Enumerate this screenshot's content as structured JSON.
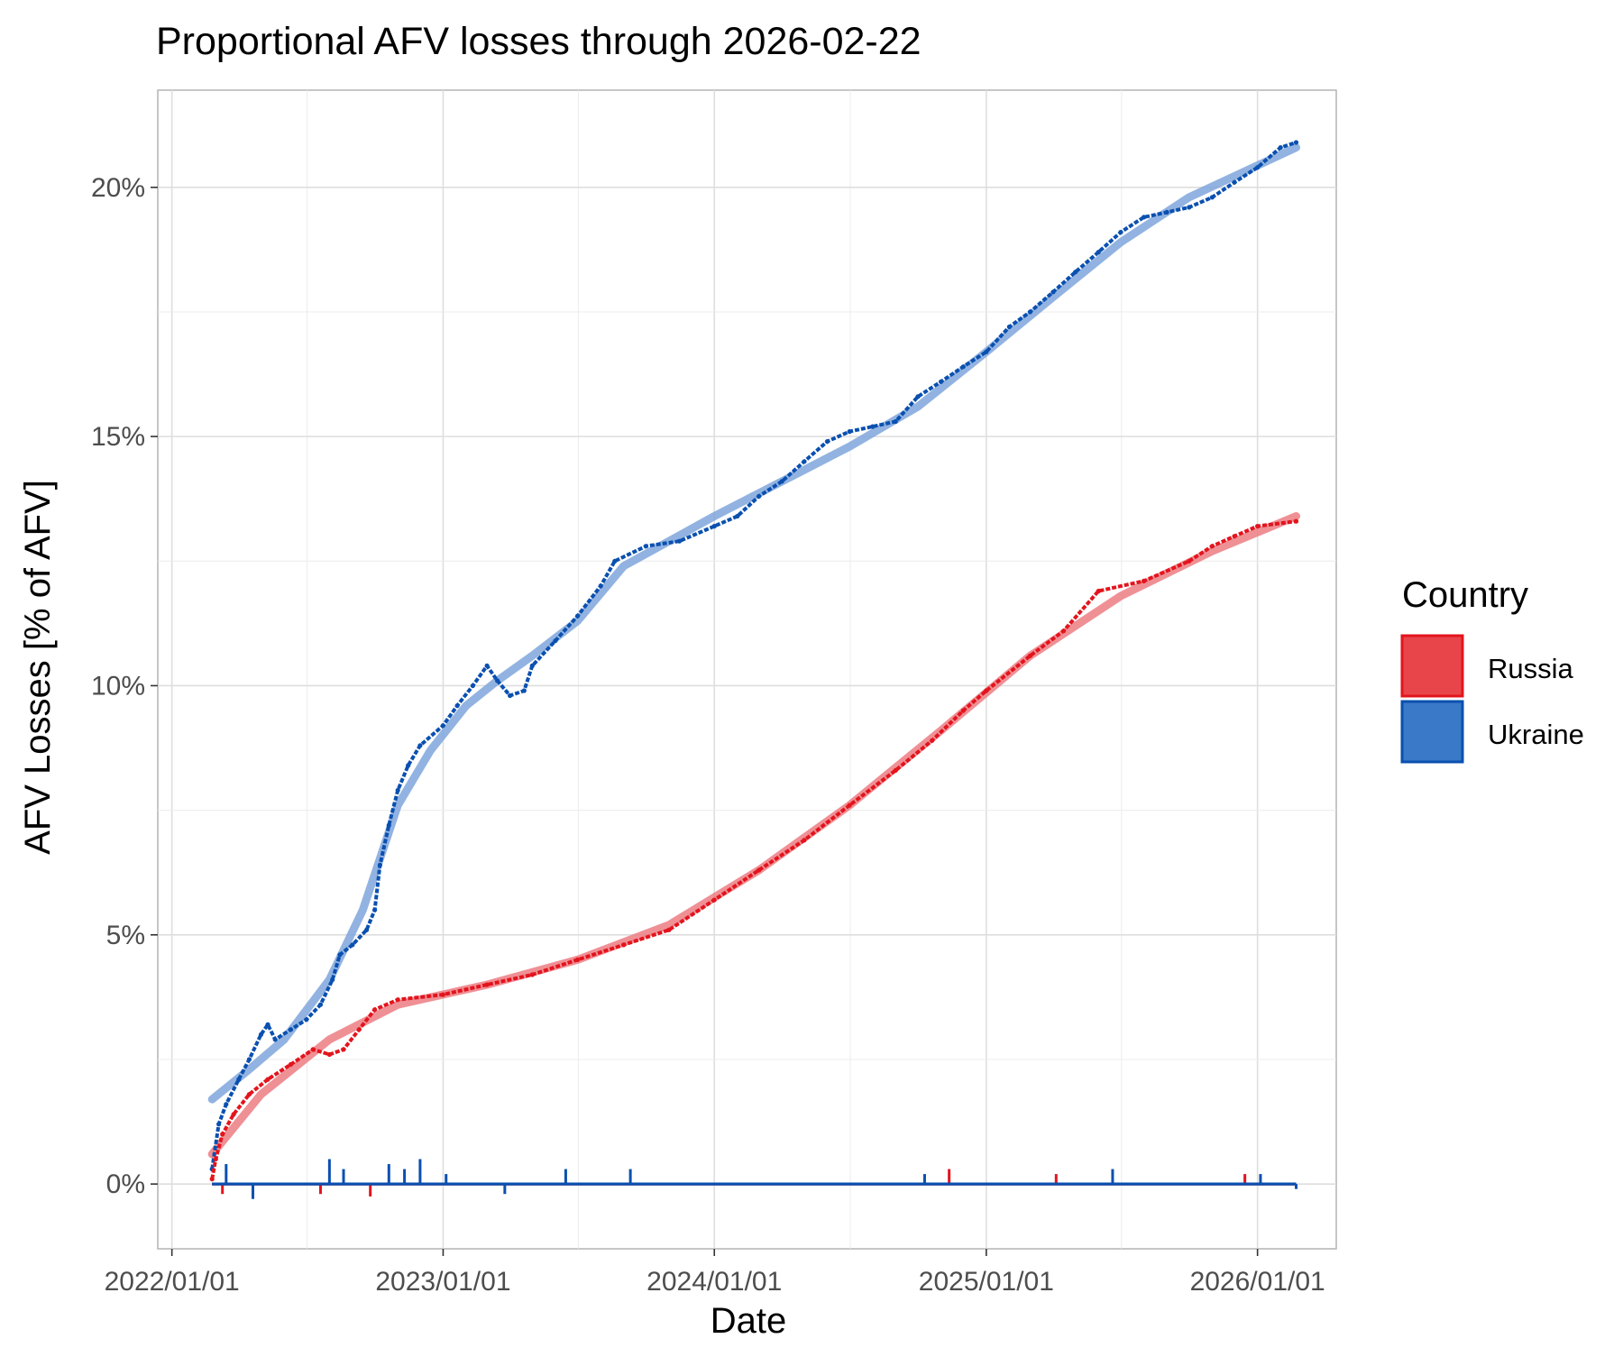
{
  "chart_data": {
    "type": "line",
    "title": "Proportional AFV losses through 2026-02-22",
    "xlabel": "Date",
    "ylabel": "AFV Losses [% of AFV]",
    "x_ticks": [
      "2022/01/01",
      "2023/01/01",
      "2024/01/01",
      "2025/01/01",
      "2026/01/01"
    ],
    "y_ticks": [
      "0%",
      "5%",
      "10%",
      "15%",
      "20%"
    ],
    "xlim": [
      "2021-12-13",
      "2026-04-17"
    ],
    "ylim": [
      -1.3,
      21.95
    ],
    "grid": true,
    "legend": {
      "title": "Country",
      "position": "right",
      "entries": [
        "Russia",
        "Ukraine"
      ]
    },
    "colors": {
      "Russia": "#e3141d",
      "Ukraine": "#0a50b0",
      "Russia_trend": "#ec7d82",
      "Ukraine_trend": "#7fa6dc",
      "Russia_fill": "#e8454b",
      "Ukraine_fill": "#3a78c8",
      "grid": "#dedede",
      "panel_border": "#b3b3b3"
    },
    "series": [
      {
        "name": "Ukraine",
        "kind": "cumulative",
        "points": [
          [
            "2022-02-24",
            0.3
          ],
          [
            "2022-03-05",
            1.2
          ],
          [
            "2022-03-15",
            1.6
          ],
          [
            "2022-04-01",
            2.1
          ],
          [
            "2022-04-15",
            2.5
          ],
          [
            "2022-05-01",
            3.0
          ],
          [
            "2022-05-10",
            3.2
          ],
          [
            "2022-05-20",
            2.9
          ],
          [
            "2022-06-10",
            3.1
          ],
          [
            "2022-07-01",
            3.3
          ],
          [
            "2022-07-20",
            3.6
          ],
          [
            "2022-08-05",
            4.1
          ],
          [
            "2022-08-15",
            4.6
          ],
          [
            "2022-09-01",
            4.8
          ],
          [
            "2022-09-20",
            5.1
          ],
          [
            "2022-10-01",
            5.5
          ],
          [
            "2022-10-08",
            6.4
          ],
          [
            "2022-10-20",
            7.2
          ],
          [
            "2022-11-01",
            7.9
          ],
          [
            "2022-11-15",
            8.4
          ],
          [
            "2022-12-01",
            8.8
          ],
          [
            "2023-01-01",
            9.2
          ],
          [
            "2023-01-20",
            9.6
          ],
          [
            "2023-02-10",
            10.0
          ],
          [
            "2023-03-01",
            10.4
          ],
          [
            "2023-03-15",
            10.1
          ],
          [
            "2023-04-01",
            9.8
          ],
          [
            "2023-04-20",
            9.9
          ],
          [
            "2023-05-01",
            10.4
          ],
          [
            "2023-06-01",
            10.9
          ],
          [
            "2023-07-01",
            11.4
          ],
          [
            "2023-08-01",
            12.0
          ],
          [
            "2023-08-20",
            12.5
          ],
          [
            "2023-10-01",
            12.8
          ],
          [
            "2023-11-15",
            12.9
          ],
          [
            "2024-01-01",
            13.2
          ],
          [
            "2024-02-01",
            13.4
          ],
          [
            "2024-03-01",
            13.8
          ],
          [
            "2024-04-01",
            14.1
          ],
          [
            "2024-05-01",
            14.5
          ],
          [
            "2024-06-01",
            14.9
          ],
          [
            "2024-07-01",
            15.1
          ],
          [
            "2024-08-01",
            15.2
          ],
          [
            "2024-09-01",
            15.3
          ],
          [
            "2024-10-01",
            15.8
          ],
          [
            "2024-11-01",
            16.1
          ],
          [
            "2024-12-01",
            16.4
          ],
          [
            "2025-01-01",
            16.7
          ],
          [
            "2025-02-01",
            17.2
          ],
          [
            "2025-03-01",
            17.5
          ],
          [
            "2025-04-01",
            17.9
          ],
          [
            "2025-05-01",
            18.3
          ],
          [
            "2025-06-01",
            18.7
          ],
          [
            "2025-07-01",
            19.1
          ],
          [
            "2025-08-01",
            19.4
          ],
          [
            "2025-09-01",
            19.5
          ],
          [
            "2025-10-01",
            19.6
          ],
          [
            "2025-11-01",
            19.8
          ],
          [
            "2025-12-01",
            20.1
          ],
          [
            "2026-01-01",
            20.4
          ],
          [
            "2026-02-01",
            20.8
          ],
          [
            "2026-02-22",
            20.9
          ]
        ]
      },
      {
        "name": "Russia",
        "kind": "cumulative",
        "points": [
          [
            "2022-02-24",
            0.1
          ],
          [
            "2022-03-01",
            0.5
          ],
          [
            "2022-03-10",
            1.0
          ],
          [
            "2022-03-25",
            1.4
          ],
          [
            "2022-04-15",
            1.8
          ],
          [
            "2022-05-10",
            2.1
          ],
          [
            "2022-06-10",
            2.4
          ],
          [
            "2022-07-10",
            2.7
          ],
          [
            "2022-08-01",
            2.6
          ],
          [
            "2022-08-20",
            2.7
          ],
          [
            "2022-09-10",
            3.1
          ],
          [
            "2022-10-01",
            3.5
          ],
          [
            "2022-11-01",
            3.7
          ],
          [
            "2023-01-01",
            3.8
          ],
          [
            "2023-03-01",
            4.0
          ],
          [
            "2023-05-01",
            4.2
          ],
          [
            "2023-07-01",
            4.5
          ],
          [
            "2023-09-01",
            4.8
          ],
          [
            "2023-11-01",
            5.1
          ],
          [
            "2024-01-01",
            5.7
          ],
          [
            "2024-03-01",
            6.3
          ],
          [
            "2024-05-01",
            6.9
          ],
          [
            "2024-07-01",
            7.6
          ],
          [
            "2024-09-01",
            8.3
          ],
          [
            "2024-10-20",
            8.9
          ],
          [
            "2024-12-01",
            9.5
          ],
          [
            "2025-01-01",
            9.9
          ],
          [
            "2025-03-01",
            10.6
          ],
          [
            "2025-04-15",
            11.1
          ],
          [
            "2025-06-01",
            11.9
          ],
          [
            "2025-08-01",
            12.1
          ],
          [
            "2025-10-01",
            12.5
          ],
          [
            "2025-11-01",
            12.8
          ],
          [
            "2025-12-01",
            13.0
          ],
          [
            "2026-01-01",
            13.2
          ],
          [
            "2026-02-22",
            13.3
          ]
        ]
      },
      {
        "name": "Ukraine",
        "kind": "trend",
        "points": [
          [
            "2022-02-24",
            1.7
          ],
          [
            "2022-04-15",
            2.3
          ],
          [
            "2022-06-01",
            2.9
          ],
          [
            "2022-08-01",
            4.1
          ],
          [
            "2022-09-15",
            5.5
          ],
          [
            "2022-11-01",
            7.6
          ],
          [
            "2022-12-15",
            8.7
          ],
          [
            "2023-02-01",
            9.6
          ],
          [
            "2023-03-15",
            10.1
          ],
          [
            "2023-05-01",
            10.6
          ],
          [
            "2023-07-01",
            11.3
          ],
          [
            "2023-09-01",
            12.4
          ],
          [
            "2023-11-01",
            12.9
          ],
          [
            "2024-01-01",
            13.4
          ],
          [
            "2024-04-01",
            14.1
          ],
          [
            "2024-07-01",
            14.8
          ],
          [
            "2024-10-01",
            15.6
          ],
          [
            "2025-01-01",
            16.7
          ],
          [
            "2025-04-01",
            17.8
          ],
          [
            "2025-07-01",
            18.9
          ],
          [
            "2025-10-01",
            19.8
          ],
          [
            "2026-02-22",
            20.8
          ]
        ]
      },
      {
        "name": "Russia",
        "kind": "trend",
        "points": [
          [
            "2022-02-24",
            0.6
          ],
          [
            "2022-05-01",
            1.8
          ],
          [
            "2022-08-01",
            2.9
          ],
          [
            "2022-11-01",
            3.6
          ],
          [
            "2023-03-01",
            4.0
          ],
          [
            "2023-07-01",
            4.5
          ],
          [
            "2023-11-01",
            5.2
          ],
          [
            "2024-03-01",
            6.3
          ],
          [
            "2024-07-01",
            7.6
          ],
          [
            "2024-11-01",
            9.1
          ],
          [
            "2025-03-01",
            10.6
          ],
          [
            "2025-07-01",
            11.8
          ],
          [
            "2025-11-01",
            12.7
          ],
          [
            "2026-02-22",
            13.4
          ]
        ]
      },
      {
        "name": "Ukraine",
        "kind": "daily",
        "spikes": [
          [
            "2022-03-15",
            0.4
          ],
          [
            "2022-04-20",
            -0.3
          ],
          [
            "2022-08-01",
            0.5
          ],
          [
            "2022-08-20",
            0.3
          ],
          [
            "2022-10-20",
            0.4
          ],
          [
            "2022-11-10",
            0.3
          ],
          [
            "2022-12-01",
            0.5
          ],
          [
            "2023-01-05",
            0.2
          ],
          [
            "2023-03-25",
            -0.2
          ],
          [
            "2023-06-15",
            0.3
          ],
          [
            "2023-09-10",
            0.3
          ],
          [
            "2024-10-10",
            0.2
          ],
          [
            "2025-06-20",
            0.3
          ],
          [
            "2026-01-05",
            0.2
          ],
          [
            "2026-02-22",
            -0.1
          ]
        ]
      },
      {
        "name": "Russia",
        "kind": "daily",
        "spikes": [
          [
            "2022-03-10",
            -0.2
          ],
          [
            "2022-07-20",
            -0.2
          ],
          [
            "2022-09-25",
            -0.25
          ],
          [
            "2024-11-12",
            0.3
          ],
          [
            "2025-04-05",
            0.2
          ],
          [
            "2025-12-15",
            0.2
          ]
        ]
      }
    ]
  }
}
